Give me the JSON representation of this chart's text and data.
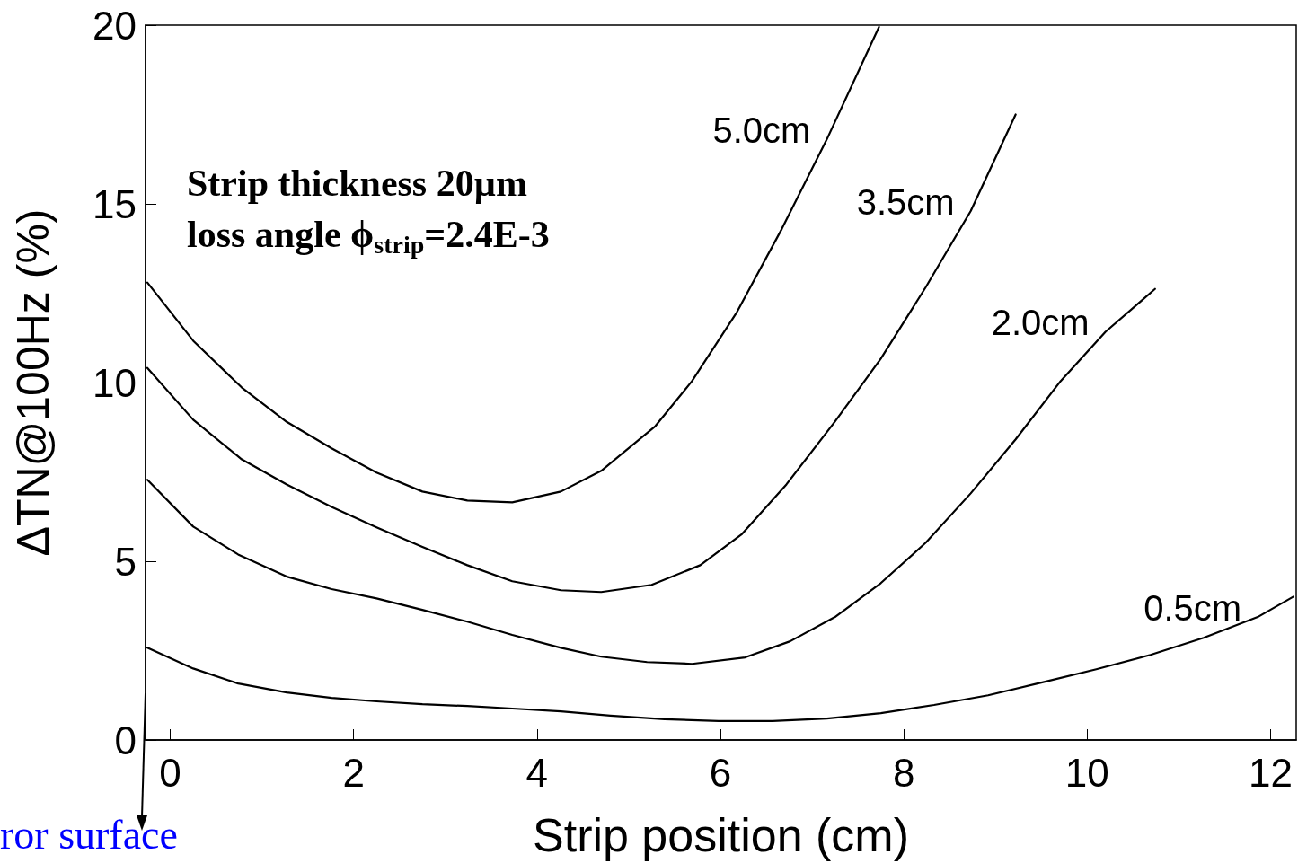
{
  "chart_data": {
    "type": "line",
    "xlabel": "Strip position (cm)",
    "ylabel": "ΔTN@100Hz (%)",
    "xlim": [
      -0.27,
      12.28
    ],
    "ylim": [
      0,
      20
    ],
    "xticks": [
      0,
      2,
      4,
      6,
      8,
      10,
      12
    ],
    "yticks": [
      0,
      5,
      10,
      15,
      20
    ],
    "grid": false,
    "marker": "none",
    "line_style": "solid",
    "series": [
      {
        "name": "5.0cm",
        "color": "#000000",
        "x": [
          -0.25,
          0.25,
          0.78,
          1.27,
          1.76,
          2.25,
          2.75,
          3.24,
          3.73,
          4.26,
          4.7,
          5.29,
          5.69,
          6.18,
          6.67,
          7.16,
          7.73
        ],
        "values": [
          12.8,
          11.17,
          9.86,
          8.9,
          8.16,
          7.48,
          6.95,
          6.7,
          6.65,
          6.95,
          7.53,
          8.78,
          10.04,
          11.97,
          14.3,
          16.8,
          19.95
        ]
      },
      {
        "name": "3.5cm",
        "color": "#000000",
        "x": [
          -0.25,
          0.25,
          0.78,
          1.27,
          1.76,
          2.25,
          2.75,
          3.24,
          3.73,
          4.26,
          4.7,
          5.25,
          5.78,
          6.23,
          6.72,
          7.25,
          7.75,
          8.24,
          8.73,
          9.22
        ],
        "values": [
          10.41,
          8.96,
          7.85,
          7.15,
          6.52,
          5.95,
          5.4,
          4.89,
          4.44,
          4.19,
          4.14,
          4.34,
          4.89,
          5.75,
          7.15,
          8.91,
          10.67,
          12.67,
          14.8,
          17.5
        ]
      },
      {
        "name": "2.0cm",
        "color": "#000000",
        "x": [
          -0.25,
          0.25,
          0.74,
          1.27,
          1.76,
          2.25,
          2.75,
          3.24,
          3.73,
          4.26,
          4.7,
          5.2,
          5.69,
          6.27,
          6.76,
          7.25,
          7.75,
          8.24,
          8.73,
          9.22,
          9.71,
          10.2,
          10.74
        ],
        "values": [
          7.28,
          5.97,
          5.19,
          4.57,
          4.22,
          3.96,
          3.64,
          3.31,
          2.94,
          2.58,
          2.33,
          2.18,
          2.13,
          2.31,
          2.76,
          3.44,
          4.39,
          5.52,
          6.9,
          8.41,
          10.04,
          11.42,
          12.62
        ]
      },
      {
        "name": "0.5cm",
        "color": "#000000",
        "x": [
          -0.25,
          0.25,
          0.74,
          1.27,
          1.76,
          2.25,
          2.75,
          3.24,
          3.73,
          4.26,
          4.8,
          5.39,
          5.98,
          6.57,
          7.16,
          7.75,
          8.33,
          8.92,
          9.51,
          10.1,
          10.69,
          11.27,
          11.86,
          12.25
        ],
        "values": [
          2.58,
          2.0,
          1.58,
          1.33,
          1.18,
          1.08,
          1.0,
          0.95,
          0.88,
          0.8,
          0.68,
          0.58,
          0.53,
          0.53,
          0.6,
          0.75,
          0.98,
          1.25,
          1.61,
          1.98,
          2.38,
          2.86,
          3.44,
          4.01
        ]
      }
    ],
    "annotations": [
      "Strip thickness 20µm",
      "loss angle ϕ$_{strip}$=2.4E-3",
      "ror surface"
    ]
  }
}
